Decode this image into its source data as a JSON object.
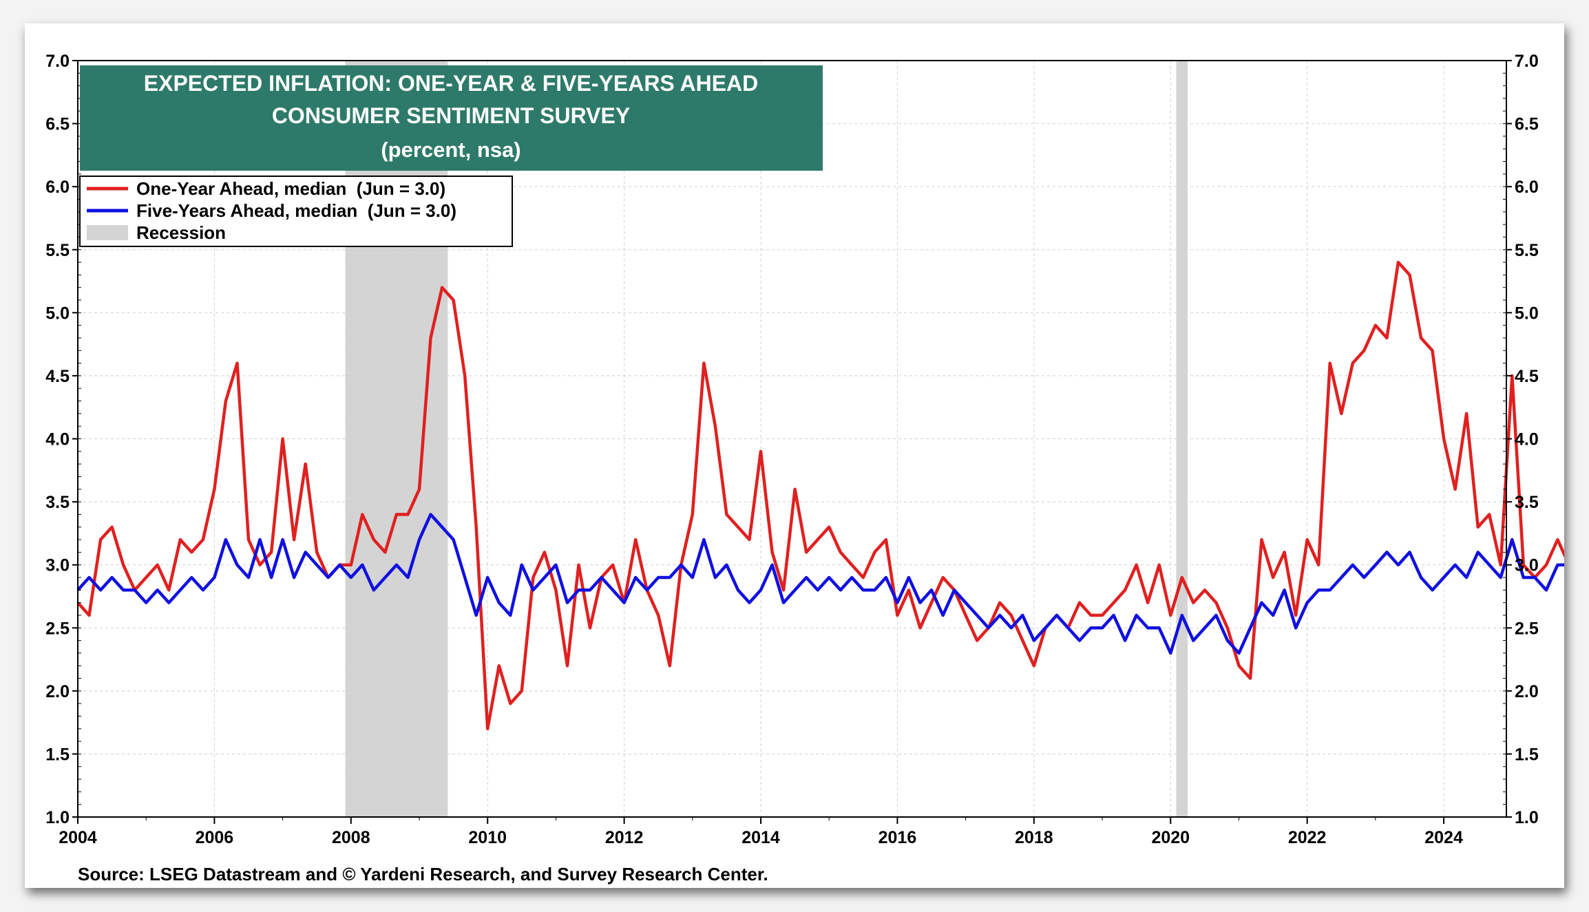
{
  "chart_data": {
    "type": "line",
    "title": "EXPECTED INFLATION: ONE-YEAR & FIVE-YEARS AHEAD",
    "subtitle": "CONSUMER SENTIMENT SURVEY",
    "units": "(percent, nsa)",
    "source": "Source: LSEG Datastream and © Yardeni Research, and Survey Research Center.",
    "ylim": [
      1.0,
      7.0
    ],
    "xlim": [
      "2004-01",
      "2024-12"
    ],
    "y_ticks": [
      "1.0",
      "1.5",
      "2.0",
      "2.5",
      "3.0",
      "3.5",
      "4.0",
      "4.5",
      "5.0",
      "5.5",
      "6.0",
      "6.5",
      "7.0"
    ],
    "x_ticks": [
      "2004",
      "2006",
      "2008",
      "2010",
      "2012",
      "2014",
      "2016",
      "2018",
      "2020",
      "2022",
      "2024"
    ],
    "grid": true,
    "legend_position": "top-left",
    "recessions": [
      {
        "start": "2007-12",
        "end": "2009-06"
      },
      {
        "start": "2020-02",
        "end": "2020-04"
      }
    ],
    "series": [
      {
        "name": "One-Year Ahead, median  (Jun = 3.0)",
        "color": "#e02020",
        "points": [
          [
            "2004-01",
            2.7
          ],
          [
            "2004-03",
            2.6
          ],
          [
            "2004-05",
            3.2
          ],
          [
            "2004-07",
            3.3
          ],
          [
            "2004-09",
            3.0
          ],
          [
            "2004-11",
            2.8
          ],
          [
            "2005-01",
            2.9
          ],
          [
            "2005-03",
            3.0
          ],
          [
            "2005-05",
            2.8
          ],
          [
            "2005-07",
            3.2
          ],
          [
            "2005-09",
            3.1
          ],
          [
            "2005-11",
            3.2
          ],
          [
            "2006-01",
            3.6
          ],
          [
            "2006-03",
            4.3
          ],
          [
            "2006-05",
            4.6
          ],
          [
            "2006-07",
            3.2
          ],
          [
            "2006-09",
            3.0
          ],
          [
            "2006-11",
            3.1
          ],
          [
            "2007-01",
            4.0
          ],
          [
            "2007-03",
            3.2
          ],
          [
            "2007-05",
            3.8
          ],
          [
            "2007-07",
            3.1
          ],
          [
            "2007-09",
            2.9
          ],
          [
            "2007-11",
            3.0
          ],
          [
            "2008-01",
            3.0
          ],
          [
            "2008-03",
            3.4
          ],
          [
            "2008-05",
            3.2
          ],
          [
            "2008-07",
            3.1
          ],
          [
            "2008-09",
            3.4
          ],
          [
            "2008-11",
            3.4
          ],
          [
            "2009-01",
            3.6
          ],
          [
            "2009-03",
            4.8
          ],
          [
            "2009-05",
            5.2
          ],
          [
            "2009-07",
            5.1
          ],
          [
            "2009-09",
            4.5
          ],
          [
            "2009-11",
            3.3
          ],
          [
            "2010-01",
            1.7
          ],
          [
            "2010-03",
            2.2
          ],
          [
            "2010-05",
            1.9
          ],
          [
            "2010-07",
            2.0
          ],
          [
            "2010-09",
            2.9
          ],
          [
            "2010-11",
            3.1
          ],
          [
            "2011-01",
            2.8
          ],
          [
            "2011-03",
            2.2
          ],
          [
            "2011-05",
            3.0
          ],
          [
            "2011-07",
            2.5
          ],
          [
            "2011-09",
            2.9
          ],
          [
            "2011-11",
            3.0
          ],
          [
            "2012-01",
            2.7
          ],
          [
            "2012-03",
            3.2
          ],
          [
            "2012-05",
            2.8
          ],
          [
            "2012-07",
            2.6
          ],
          [
            "2012-09",
            2.2
          ],
          [
            "2012-11",
            3.0
          ],
          [
            "2013-01",
            3.4
          ],
          [
            "2013-03",
            4.6
          ],
          [
            "2013-05",
            4.1
          ],
          [
            "2013-07",
            3.4
          ],
          [
            "2013-09",
            3.3
          ],
          [
            "2013-11",
            3.2
          ],
          [
            "2014-01",
            3.9
          ],
          [
            "2014-03",
            3.1
          ],
          [
            "2014-05",
            2.8
          ],
          [
            "2014-07",
            3.6
          ],
          [
            "2014-09",
            3.1
          ],
          [
            "2014-11",
            3.2
          ],
          [
            "2015-01",
            3.3
          ],
          [
            "2015-03",
            3.1
          ],
          [
            "2015-05",
            3.0
          ],
          [
            "2015-07",
            2.9
          ],
          [
            "2015-09",
            3.1
          ],
          [
            "2015-11",
            3.2
          ],
          [
            "2016-01",
            2.6
          ],
          [
            "2016-03",
            2.8
          ],
          [
            "2016-05",
            2.5
          ],
          [
            "2016-07",
            2.7
          ],
          [
            "2016-09",
            2.9
          ],
          [
            "2016-11",
            2.8
          ],
          [
            "2017-01",
            2.6
          ],
          [
            "2017-03",
            2.4
          ],
          [
            "2017-05",
            2.5
          ],
          [
            "2017-07",
            2.7
          ],
          [
            "2017-09",
            2.6
          ],
          [
            "2017-11",
            2.4
          ],
          [
            "2018-01",
            2.2
          ],
          [
            "2018-03",
            2.5
          ],
          [
            "2018-05",
            2.6
          ],
          [
            "2018-07",
            2.5
          ],
          [
            "2018-09",
            2.7
          ],
          [
            "2018-11",
            2.6
          ],
          [
            "2019-01",
            2.6
          ],
          [
            "2019-03",
            2.7
          ],
          [
            "2019-05",
            2.8
          ],
          [
            "2019-07",
            3.0
          ],
          [
            "2019-09",
            2.7
          ],
          [
            "2019-11",
            3.0
          ],
          [
            "2020-01",
            2.6
          ],
          [
            "2020-03",
            2.9
          ],
          [
            "2020-05",
            2.7
          ],
          [
            "2020-07",
            2.8
          ],
          [
            "2020-09",
            2.7
          ],
          [
            "2020-11",
            2.5
          ],
          [
            "2021-01",
            2.2
          ],
          [
            "2021-03",
            2.1
          ],
          [
            "2021-05",
            3.2
          ],
          [
            "2021-07",
            2.9
          ],
          [
            "2021-09",
            3.1
          ],
          [
            "2021-11",
            2.6
          ],
          [
            "2022-01",
            3.2
          ],
          [
            "2022-03",
            3.0
          ],
          [
            "2022-05",
            4.6
          ],
          [
            "2022-07",
            4.2
          ],
          [
            "2022-09",
            4.6
          ],
          [
            "2022-11",
            4.7
          ],
          [
            "2023-01",
            4.9
          ],
          [
            "2023-03",
            4.8
          ],
          [
            "2023-05",
            5.4
          ],
          [
            "2023-07",
            5.3
          ],
          [
            "2023-09",
            4.8
          ],
          [
            "2023-11",
            4.7
          ],
          [
            "2024-01",
            4.0
          ],
          [
            "2024-03",
            3.6
          ],
          [
            "2024-05",
            4.2
          ],
          [
            "2024-07",
            3.3
          ],
          [
            "2024-09",
            3.4
          ],
          [
            "2024-11",
            3.0
          ],
          [
            "2025-01",
            4.5
          ],
          [
            "2025-03",
            3.0
          ],
          [
            "2025-05",
            2.9
          ],
          [
            "2025-07",
            3.0
          ],
          [
            "2025-09",
            3.2
          ],
          [
            "2025-11",
            3.0
          ]
        ]
      },
      {
        "name": "Five-Years Ahead, median  (Jun = 3.0)",
        "color": "#1010e0",
        "points": [
          [
            "2004-01",
            2.8
          ],
          [
            "2004-03",
            2.9
          ],
          [
            "2004-05",
            2.8
          ],
          [
            "2004-07",
            2.9
          ],
          [
            "2004-09",
            2.8
          ],
          [
            "2004-11",
            2.8
          ],
          [
            "2005-01",
            2.7
          ],
          [
            "2005-03",
            2.8
          ],
          [
            "2005-05",
            2.7
          ],
          [
            "2005-07",
            2.8
          ],
          [
            "2005-09",
            2.9
          ],
          [
            "2005-11",
            2.8
          ],
          [
            "2006-01",
            2.9
          ],
          [
            "2006-03",
            3.2
          ],
          [
            "2006-05",
            3.0
          ],
          [
            "2006-07",
            2.9
          ],
          [
            "2006-09",
            3.2
          ],
          [
            "2006-11",
            2.9
          ],
          [
            "2007-01",
            3.2
          ],
          [
            "2007-03",
            2.9
          ],
          [
            "2007-05",
            3.1
          ],
          [
            "2007-07",
            3.0
          ],
          [
            "2007-09",
            2.9
          ],
          [
            "2007-11",
            3.0
          ],
          [
            "2008-01",
            2.9
          ],
          [
            "2008-03",
            3.0
          ],
          [
            "2008-05",
            2.8
          ],
          [
            "2008-07",
            2.9
          ],
          [
            "2008-09",
            3.0
          ],
          [
            "2008-11",
            2.9
          ],
          [
            "2009-01",
            3.2
          ],
          [
            "2009-03",
            3.4
          ],
          [
            "2009-05",
            3.3
          ],
          [
            "2009-07",
            3.2
          ],
          [
            "2009-09",
            2.9
          ],
          [
            "2009-11",
            2.6
          ],
          [
            "2010-01",
            2.9
          ],
          [
            "2010-03",
            2.7
          ],
          [
            "2010-05",
            2.6
          ],
          [
            "2010-07",
            3.0
          ],
          [
            "2010-09",
            2.8
          ],
          [
            "2010-11",
            2.9
          ],
          [
            "2011-01",
            3.0
          ],
          [
            "2011-03",
            2.7
          ],
          [
            "2011-05",
            2.8
          ],
          [
            "2011-07",
            2.8
          ],
          [
            "2011-09",
            2.9
          ],
          [
            "2011-11",
            2.8
          ],
          [
            "2012-01",
            2.7
          ],
          [
            "2012-03",
            2.9
          ],
          [
            "2012-05",
            2.8
          ],
          [
            "2012-07",
            2.9
          ],
          [
            "2012-09",
            2.9
          ],
          [
            "2012-11",
            3.0
          ],
          [
            "2013-01",
            2.9
          ],
          [
            "2013-03",
            3.2
          ],
          [
            "2013-05",
            2.9
          ],
          [
            "2013-07",
            3.0
          ],
          [
            "2013-09",
            2.8
          ],
          [
            "2013-11",
            2.7
          ],
          [
            "2014-01",
            2.8
          ],
          [
            "2014-03",
            3.0
          ],
          [
            "2014-05",
            2.7
          ],
          [
            "2014-07",
            2.8
          ],
          [
            "2014-09",
            2.9
          ],
          [
            "2014-11",
            2.8
          ],
          [
            "2015-01",
            2.9
          ],
          [
            "2015-03",
            2.8
          ],
          [
            "2015-05",
            2.9
          ],
          [
            "2015-07",
            2.8
          ],
          [
            "2015-09",
            2.8
          ],
          [
            "2015-11",
            2.9
          ],
          [
            "2016-01",
            2.7
          ],
          [
            "2016-03",
            2.9
          ],
          [
            "2016-05",
            2.7
          ],
          [
            "2016-07",
            2.8
          ],
          [
            "2016-09",
            2.6
          ],
          [
            "2016-11",
            2.8
          ],
          [
            "2017-01",
            2.7
          ],
          [
            "2017-03",
            2.6
          ],
          [
            "2017-05",
            2.5
          ],
          [
            "2017-07",
            2.6
          ],
          [
            "2017-09",
            2.5
          ],
          [
            "2017-11",
            2.6
          ],
          [
            "2018-01",
            2.4
          ],
          [
            "2018-03",
            2.5
          ],
          [
            "2018-05",
            2.6
          ],
          [
            "2018-07",
            2.5
          ],
          [
            "2018-09",
            2.4
          ],
          [
            "2018-11",
            2.5
          ],
          [
            "2019-01",
            2.5
          ],
          [
            "2019-03",
            2.6
          ],
          [
            "2019-05",
            2.4
          ],
          [
            "2019-07",
            2.6
          ],
          [
            "2019-09",
            2.5
          ],
          [
            "2019-11",
            2.5
          ],
          [
            "2020-01",
            2.3
          ],
          [
            "2020-03",
            2.6
          ],
          [
            "2020-05",
            2.4
          ],
          [
            "2020-07",
            2.5
          ],
          [
            "2020-09",
            2.6
          ],
          [
            "2020-11",
            2.4
          ],
          [
            "2021-01",
            2.3
          ],
          [
            "2021-03",
            2.5
          ],
          [
            "2021-05",
            2.7
          ],
          [
            "2021-07",
            2.6
          ],
          [
            "2021-09",
            2.8
          ],
          [
            "2021-11",
            2.5
          ],
          [
            "2022-01",
            2.7
          ],
          [
            "2022-03",
            2.8
          ],
          [
            "2022-05",
            2.8
          ],
          [
            "2022-07",
            2.9
          ],
          [
            "2022-09",
            3.0
          ],
          [
            "2022-11",
            2.9
          ],
          [
            "2023-01",
            3.0
          ],
          [
            "2023-03",
            3.1
          ],
          [
            "2023-05",
            3.0
          ],
          [
            "2023-07",
            3.1
          ],
          [
            "2023-09",
            2.9
          ],
          [
            "2023-11",
            2.8
          ],
          [
            "2024-01",
            2.9
          ],
          [
            "2024-03",
            3.0
          ],
          [
            "2024-05",
            2.9
          ],
          [
            "2024-07",
            3.1
          ],
          [
            "2024-09",
            3.0
          ],
          [
            "2024-11",
            2.9
          ],
          [
            "2025-01",
            3.2
          ],
          [
            "2025-03",
            2.9
          ],
          [
            "2025-05",
            2.9
          ],
          [
            "2025-07",
            2.8
          ],
          [
            "2025-09",
            3.0
          ],
          [
            "2025-11",
            3.0
          ]
        ]
      }
    ],
    "recession_legend": "Recession"
  },
  "colors": {
    "title_bg": "#2e7a6a",
    "recession": "#d4d4d4",
    "one_year": "#e02020",
    "five_year": "#1010e0"
  }
}
